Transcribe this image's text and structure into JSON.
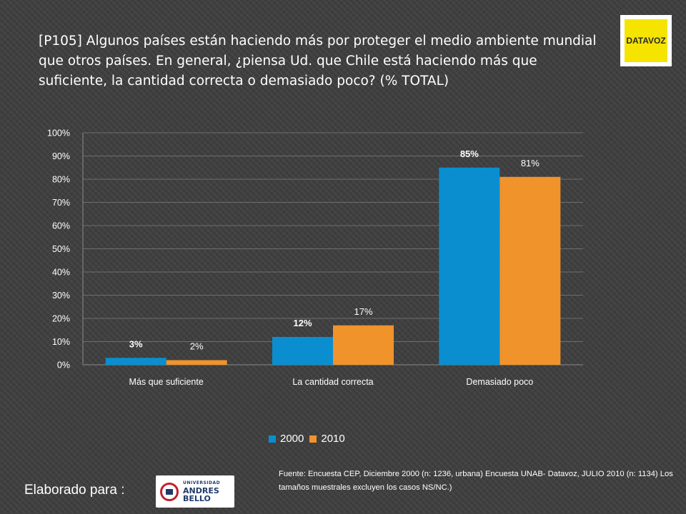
{
  "title": "[P105] Algunos países están haciendo más por proteger el medio ambiente mundial que otros países. En general, ¿piensa Ud. que Chile está haciendo más que suficiente, la cantidad correcta o demasiado poco? (% TOTAL)",
  "logo_datavoz": "DATAVOZ",
  "chart_data": {
    "type": "bar",
    "categories": [
      "Más que suficiente",
      "La cantidad correcta",
      "Demasiado poco"
    ],
    "series": [
      {
        "name": "2000",
        "values": [
          3,
          12,
          85
        ],
        "labels": [
          "3%",
          "12%",
          "85%"
        ],
        "color": "#0a8ed0"
      },
      {
        "name": "2010",
        "values": [
          2,
          17,
          81
        ],
        "labels": [
          "2%",
          "17%",
          "81%"
        ],
        "color": "#f0932b"
      }
    ],
    "ylim": [
      0,
      100
    ],
    "yticks": [
      "0%",
      "10%",
      "20%",
      "30%",
      "40%",
      "50%",
      "60%",
      "70%",
      "80%",
      "90%",
      "100%"
    ],
    "grid": true,
    "legend_position": "bottom"
  },
  "legend": {
    "item1": "2000",
    "item2": "2010"
  },
  "source_text": "Fuente: Encuesta  CEP, Diciembre 2000 (n: 1236, urbana) Encuesta UNAB- Datavoz, JULIO 2010 (n: 1134) Los tamaños muestrales excluyen los casos NS/NC.)",
  "elaborado": "Elaborado para :",
  "logo_unab": {
    "small": "UNIVERSIDAD",
    "big": "ANDRES BELLO"
  }
}
